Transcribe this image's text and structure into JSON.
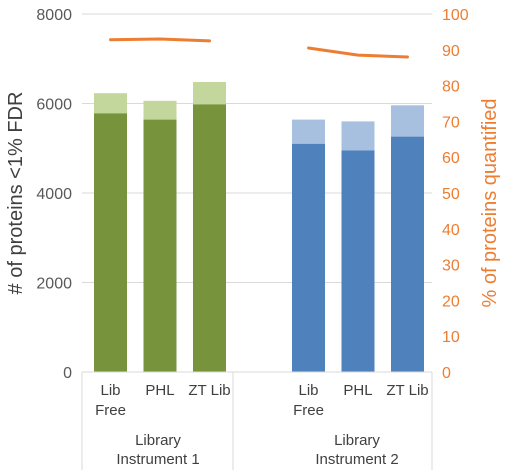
{
  "chart_data": {
    "type": "bar",
    "ylabel_left": "# of proteins <1% FDR",
    "ylabel_right": "% of proteins quantified",
    "ylim_left": [
      0,
      8000
    ],
    "yticks_left": [
      "0",
      "2000",
      "4000",
      "6000",
      "8000"
    ],
    "ylim_right": [
      0,
      100
    ],
    "yticks_right": [
      "0",
      "10",
      "20",
      "30",
      "40",
      "50",
      "60",
      "70",
      "80",
      "90",
      "100"
    ],
    "grid": true,
    "groups": [
      {
        "label_line1": "Library",
        "label_line2": "Instrument 1",
        "categories": [
          {
            "line1": "Lib",
            "line2": "Free"
          },
          {
            "line1": "PHL",
            "line2": ""
          },
          {
            "line1": "ZT Lib",
            "line2": ""
          }
        ],
        "bar_base": [
          5780,
          5640,
          5980
        ],
        "bar_total": [
          6230,
          6060,
          6480
        ],
        "percent_quantified": [
          92.8,
          93.0,
          92.5
        ],
        "color_base": "#77933C",
        "color_top": "#C3D69B"
      },
      {
        "label_line1": "Library",
        "label_line2": "Instrument 2",
        "categories": [
          {
            "line1": "Lib",
            "line2": "Free"
          },
          {
            "line1": "PHL",
            "line2": ""
          },
          {
            "line1": "ZT Lib",
            "line2": ""
          }
        ],
        "bar_base": [
          5100,
          4950,
          5260
        ],
        "bar_total": [
          5640,
          5600,
          5960
        ],
        "percent_quantified": [
          90.5,
          88.5,
          88.0
        ],
        "color_base": "#4F81BD",
        "color_top": "#A7C0E0"
      }
    ],
    "line_color": "#ED7D31"
  }
}
